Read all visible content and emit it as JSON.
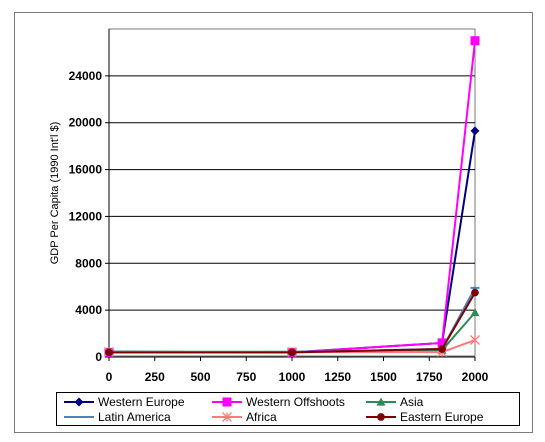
{
  "chart_data": {
    "type": "line",
    "title": "",
    "xlabel": "",
    "ylabel": "GDP Per Capita (1990 Int'l $)",
    "x": [
      0,
      1000,
      1820,
      2000
    ],
    "xlim": [
      0,
      2000
    ],
    "ylim": [
      0,
      28000
    ],
    "xticks": [
      "0",
      "250",
      "500",
      "750",
      "1000",
      "1250",
      "1500",
      "1750",
      "2000"
    ],
    "yticks": [
      "0",
      "4000",
      "8000",
      "12000",
      "16000",
      "20000",
      "24000"
    ],
    "grid": "horizontal",
    "legend_position": "bottom",
    "series": [
      {
        "name": "Western Europe",
        "values": [
          450,
          400,
          1200,
          19300
        ],
        "color": "#000080",
        "marker": "diamond"
      },
      {
        "name": "Western Offshoots",
        "values": [
          400,
          400,
          1200,
          27000
        ],
        "color": "#ff00ff",
        "marker": "square"
      },
      {
        "name": "Asia",
        "values": [
          450,
          450,
          580,
          3800
        ],
        "color": "#2e8b57",
        "marker": "triangle"
      },
      {
        "name": "Latin America",
        "values": [
          400,
          400,
          690,
          5900
        ],
        "color": "#4f81bd",
        "marker": "cross"
      },
      {
        "name": "Africa",
        "values": [
          430,
          420,
          420,
          1450
        ],
        "color": "#ff7a7a",
        "marker": "star"
      },
      {
        "name": "Eastern Europe",
        "values": [
          400,
          400,
          680,
          5500
        ],
        "color": "#800000",
        "marker": "circle"
      }
    ]
  }
}
